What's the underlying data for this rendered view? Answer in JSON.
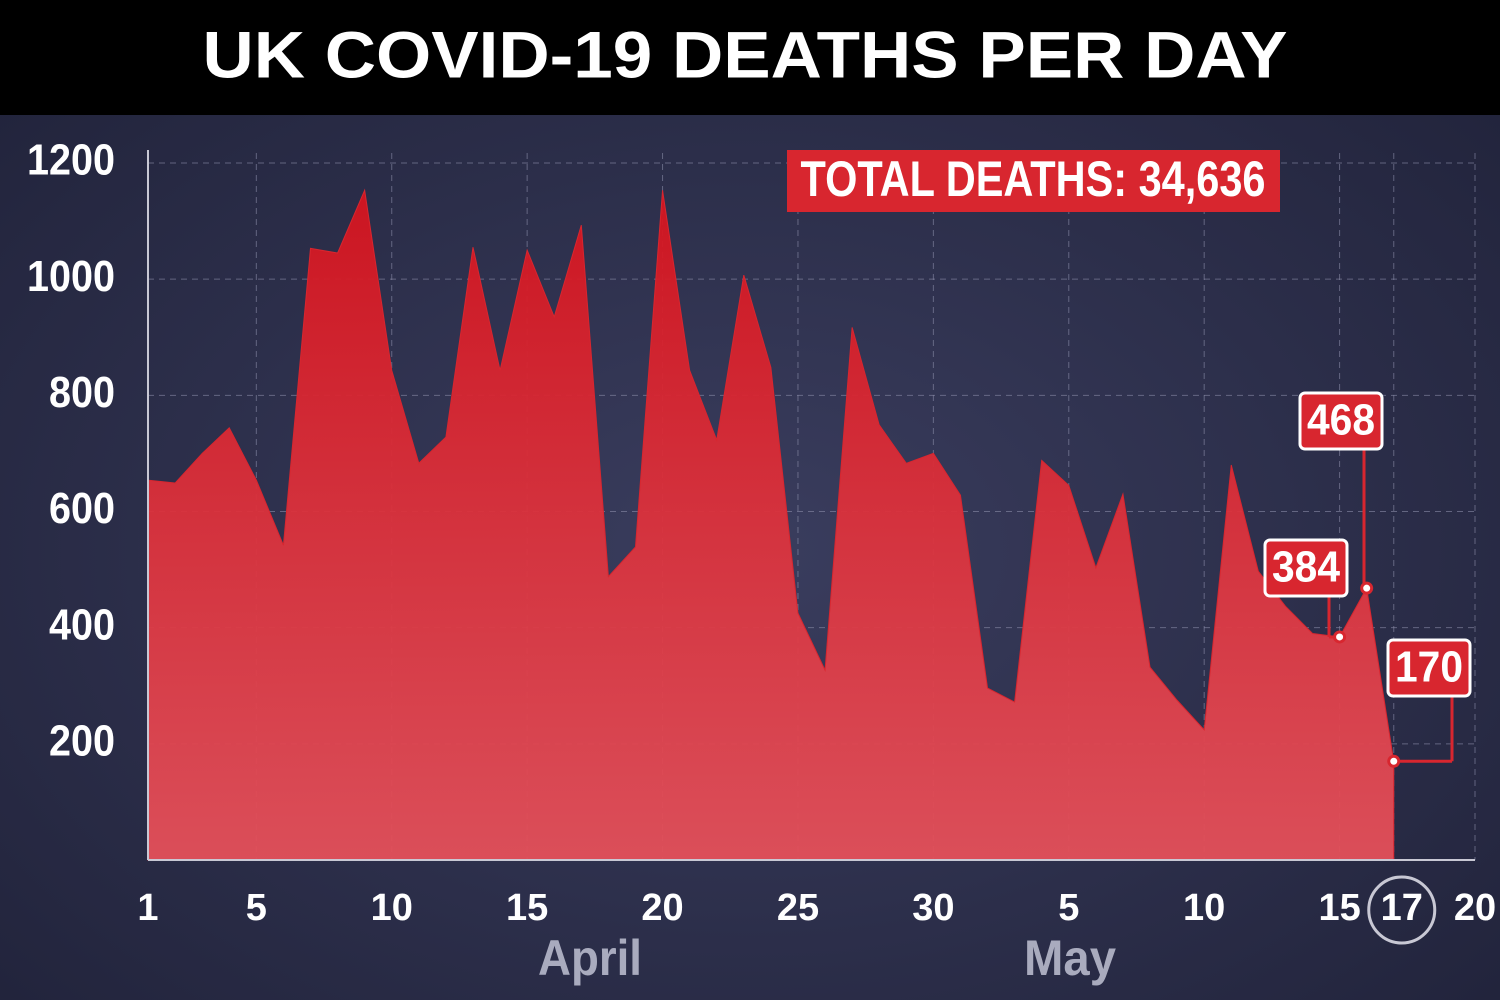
{
  "chart_data": {
    "type": "area",
    "title": "UK COVID-19 DEATHS PER DAY",
    "annotation": "TOTAL DEATHS: 34,636",
    "month_labels": [
      "April",
      "May"
    ],
    "x": [
      1,
      2,
      3,
      4,
      5,
      6,
      7,
      8,
      9,
      10,
      11,
      12,
      13,
      14,
      15,
      16,
      17,
      18,
      19,
      20,
      21,
      22,
      23,
      24,
      25,
      26,
      27,
      28,
      29,
      30,
      31,
      32,
      33,
      34,
      35,
      36,
      37,
      38,
      39,
      40,
      41,
      42,
      43,
      44,
      45,
      46,
      47
    ],
    "values": [
      654,
      649,
      700,
      744,
      654,
      542,
      1053,
      1045,
      1153,
      843,
      683,
      728,
      1055,
      843,
      1050,
      935,
      1093,
      488,
      539,
      1153,
      843,
      723,
      1007,
      848,
      425,
      327,
      917,
      749,
      683,
      700,
      628,
      296,
      272,
      688,
      645,
      503,
      630,
      332,
      275,
      224,
      680,
      497,
      437,
      390,
      384,
      468,
      170
    ],
    "color": "#d8262f",
    "xlim": [
      1,
      50
    ],
    "xticks": [
      1,
      5,
      10,
      15,
      20,
      25,
      30,
      {
        "value": 35,
        "label": "5"
      },
      {
        "value": 40,
        "label": "10"
      },
      {
        "value": 45,
        "label": "15"
      },
      {
        "value": 47,
        "label": "17"
      },
      {
        "value": 50,
        "label": "20"
      }
    ],
    "ylim": [
      0,
      1200
    ],
    "yticks": [
      200,
      400,
      600,
      800,
      1000,
      1200
    ],
    "grid": true
  }
}
